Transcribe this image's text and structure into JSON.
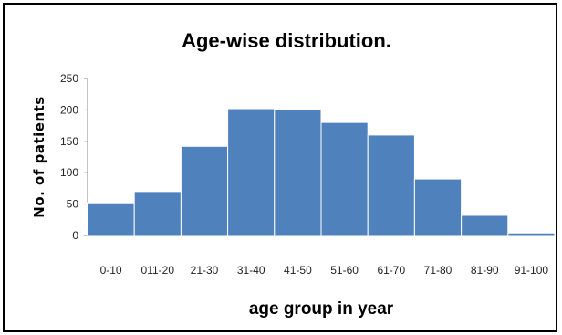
{
  "chart_data": {
    "type": "bar",
    "title": "Age-wise distribution.",
    "xlabel": "age group in year",
    "ylabel": "No. of patients",
    "categories": [
      "0-10",
      "011-20",
      "21-30",
      "31-40",
      "41-50",
      "51-60",
      "61-70",
      "71-80",
      "81-90",
      "91-100"
    ],
    "values": [
      52,
      70,
      142,
      202,
      200,
      180,
      160,
      90,
      32,
      4
    ],
    "ylim": [
      0,
      250
    ],
    "yticks": [
      0,
      50,
      100,
      150,
      200,
      250
    ],
    "grid": false,
    "legend": "none",
    "bar_color": "#4f81bd"
  }
}
